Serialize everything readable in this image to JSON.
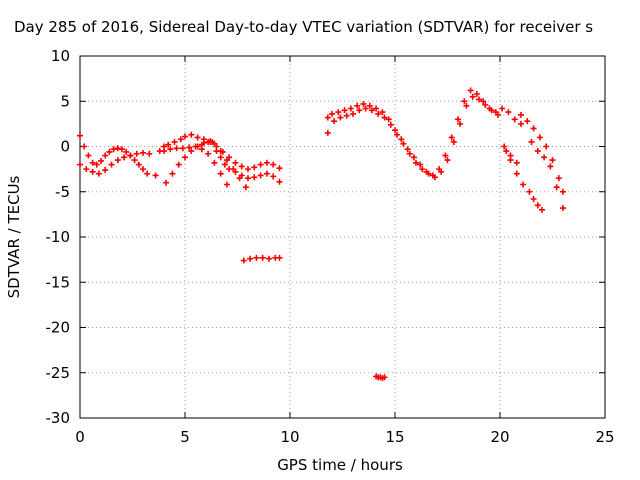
{
  "chart_data": {
    "type": "scatter",
    "title": "Day 285 of 2016, Sidereal Day-to-day VTEC variation (SDTVAR) for receiver s",
    "xlabel": "GPS time / hours",
    "ylabel": "SDTVAR / TECUs",
    "xlim": [
      0,
      25
    ],
    "ylim": [
      -30,
      10
    ],
    "xticks": [
      "0",
      "5",
      "10",
      "15",
      "20",
      "25"
    ],
    "yticks": [
      "10",
      "5",
      "0",
      "-5",
      "-10",
      "-15",
      "-20",
      "-25",
      "-30"
    ],
    "grid": true,
    "marker": "+",
    "color": "#ff0000",
    "series": [
      {
        "x": [
          0.0,
          0.2,
          0.4,
          0.6,
          0.8,
          1.0,
          1.2,
          1.4,
          1.6,
          1.8,
          2.0,
          2.2,
          2.4,
          2.6,
          2.8,
          3.0,
          3.2
        ],
        "y": [
          1.2,
          0.0,
          -1.0,
          -1.8,
          -2.0,
          -1.6,
          -1.0,
          -0.6,
          -0.3,
          -0.2,
          -0.3,
          -0.6,
          -1.0,
          -1.5,
          -2.0,
          -2.5,
          -3.0
        ]
      },
      {
        "x": [
          0.0,
          0.3,
          0.6,
          0.9,
          1.2,
          1.5,
          1.8,
          2.1,
          2.4,
          2.7,
          3.0,
          3.3
        ],
        "y": [
          -2.0,
          -2.5,
          -2.8,
          -3.0,
          -2.6,
          -2.0,
          -1.5,
          -1.2,
          -1.0,
          -0.8,
          -0.7,
          -0.8
        ]
      },
      {
        "x": [
          3.6,
          3.8,
          4.0,
          4.2,
          4.5,
          4.8,
          5.0,
          5.3,
          5.6,
          5.9,
          6.2,
          6.5,
          6.8,
          7.1,
          7.4,
          7.7,
          8.0,
          8.3,
          8.6,
          8.9,
          9.2,
          9.5
        ],
        "y": [
          -3.2,
          -0.5,
          0.0,
          0.2,
          0.5,
          0.8,
          1.1,
          1.3,
          1.0,
          0.8,
          0.5,
          0.0,
          -0.6,
          -1.2,
          -1.8,
          -2.2,
          -2.5,
          -2.3,
          -2.0,
          -1.8,
          -2.0,
          -2.4
        ]
      },
      {
        "x": [
          4.0,
          4.3,
          4.6,
          4.9,
          5.2,
          5.5,
          5.8,
          6.1,
          6.4,
          6.7,
          7.0,
          7.3,
          7.6,
          7.9
        ],
        "y": [
          -0.5,
          -0.3,
          -0.2,
          -0.2,
          -0.1,
          0.0,
          0.2,
          0.5,
          0.3,
          -0.5,
          -1.5,
          -2.5,
          -3.5,
          -4.5
        ]
      },
      {
        "x": [
          4.1,
          4.4,
          4.7,
          5.0,
          5.3,
          5.6,
          5.9,
          6.2
        ],
        "y": [
          -4.0,
          -3.0,
          -2.0,
          -1.2,
          -0.5,
          0.0,
          0.4,
          0.6
        ]
      },
      {
        "x": [
          6.3,
          6.5,
          6.7,
          6.9,
          7.1,
          7.4,
          7.7,
          8.0,
          8.3,
          8.6,
          8.9,
          9.2,
          9.5
        ],
        "y": [
          0.5,
          -0.5,
          -1.2,
          -2.0,
          -2.5,
          -2.8,
          -3.2,
          -3.5,
          -3.4,
          -3.2,
          -3.0,
          -3.3,
          -3.9
        ]
      },
      {
        "x": [
          5.8,
          6.1,
          6.4,
          6.7,
          7.0
        ],
        "y": [
          -0.3,
          -0.8,
          -1.8,
          -3.0,
          -4.2
        ]
      },
      {
        "x": [
          7.8,
          8.1,
          8.4,
          8.7,
          9.0,
          9.3,
          9.5
        ],
        "y": [
          -12.6,
          -12.4,
          -12.3,
          -12.3,
          -12.4,
          -12.3,
          -12.3
        ]
      },
      {
        "x": [
          11.8,
          12.0,
          12.3,
          12.6,
          12.9,
          13.2,
          13.5,
          13.8,
          14.1,
          14.4,
          14.7,
          15.0,
          15.3,
          15.6,
          15.9,
          16.2,
          16.5,
          16.8,
          17.1,
          17.4,
          17.7,
          18.0,
          18.3,
          18.6,
          18.9,
          19.2,
          19.5,
          19.8,
          20.1,
          20.4,
          20.7,
          21.0
        ],
        "y": [
          3.2,
          3.6,
          3.8,
          4.0,
          4.2,
          4.5,
          4.7,
          4.5,
          4.2,
          3.8,
          3.0,
          1.8,
          0.8,
          -0.3,
          -1.2,
          -2.0,
          -2.8,
          -3.2,
          -2.5,
          -1.0,
          1.0,
          3.0,
          5.0,
          6.2,
          5.8,
          5.0,
          4.2,
          3.8,
          4.2,
          3.8,
          3.0,
          2.5
        ]
      },
      {
        "x": [
          11.8,
          12.1,
          12.4,
          12.7,
          13.0,
          13.3,
          13.6,
          13.9,
          14.2,
          14.5,
          14.8,
          15.1,
          15.4,
          15.7,
          16.0,
          16.3,
          16.6,
          16.9,
          17.2,
          17.5,
          17.8,
          18.1,
          18.4,
          18.7,
          19.0,
          19.3,
          19.6,
          19.9
        ],
        "y": [
          1.5,
          2.8,
          3.2,
          3.4,
          3.6,
          4.0,
          4.2,
          4.0,
          3.6,
          3.2,
          2.4,
          1.3,
          0.3,
          -0.8,
          -1.8,
          -2.5,
          -3.0,
          -3.4,
          -2.8,
          -1.5,
          0.5,
          2.5,
          4.5,
          5.5,
          5.2,
          4.6,
          4.0,
          3.5
        ]
      },
      {
        "x": [
          20.2,
          20.5,
          20.8,
          21.1,
          21.4,
          21.6,
          21.8,
          22.0
        ],
        "y": [
          0.0,
          -1.5,
          -3.0,
          -4.2,
          -5.0,
          -5.8,
          -6.5,
          -7.0
        ]
      },
      {
        "x": [
          20.3,
          20.5,
          20.8
        ],
        "y": [
          -0.5,
          -1.0,
          -1.8
        ]
      },
      {
        "x": [
          21.0,
          21.3,
          21.6,
          21.9,
          22.2,
          22.5,
          22.8,
          23.0
        ],
        "y": [
          3.5,
          2.8,
          2.0,
          1.0,
          0.0,
          -1.5,
          -3.5,
          -5.0
        ]
      },
      {
        "x": [
          21.5,
          21.8,
          22.1,
          22.4,
          22.7,
          23.0
        ],
        "y": [
          0.5,
          -0.5,
          -1.2,
          -2.2,
          -4.5,
          -6.8
        ]
      },
      {
        "x": [
          14.1,
          14.2,
          14.3,
          14.4,
          14.5
        ],
        "y": [
          -25.4,
          -25.5,
          -25.5,
          -25.6,
          -25.5
        ]
      }
    ]
  }
}
